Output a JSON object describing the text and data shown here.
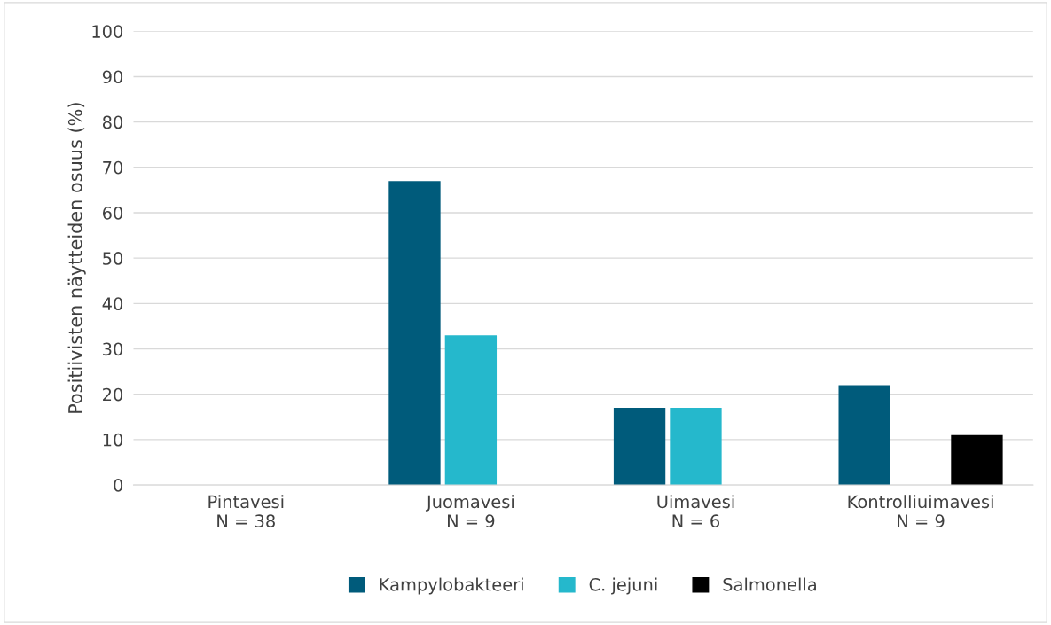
{
  "chart_data": {
    "type": "bar",
    "ylabel": "Positiivisten näytteiden osuus (%)",
    "categories": [
      "Pintavesi\nN = 38",
      "Juomavesi\nN = 9",
      "Uimavesi\nN = 6",
      "Kontrolliuimavesi\nN = 9"
    ],
    "series": [
      {
        "name": "Kampylobakteeri",
        "color": "#005b7b",
        "values": [
          0,
          67,
          17,
          22
        ]
      },
      {
        "name": "C. jejuni",
        "color": "#25b8cc",
        "values": [
          0,
          33,
          17,
          0
        ]
      },
      {
        "name": "Salmonella",
        "color": "#000000",
        "values": [
          0,
          0,
          0,
          11
        ]
      }
    ],
    "ylim": [
      0,
      100
    ],
    "yticks": [
      0,
      10,
      20,
      30,
      40,
      50,
      60,
      70,
      80,
      90,
      100
    ],
    "grid": "y",
    "legend": "bottom"
  }
}
